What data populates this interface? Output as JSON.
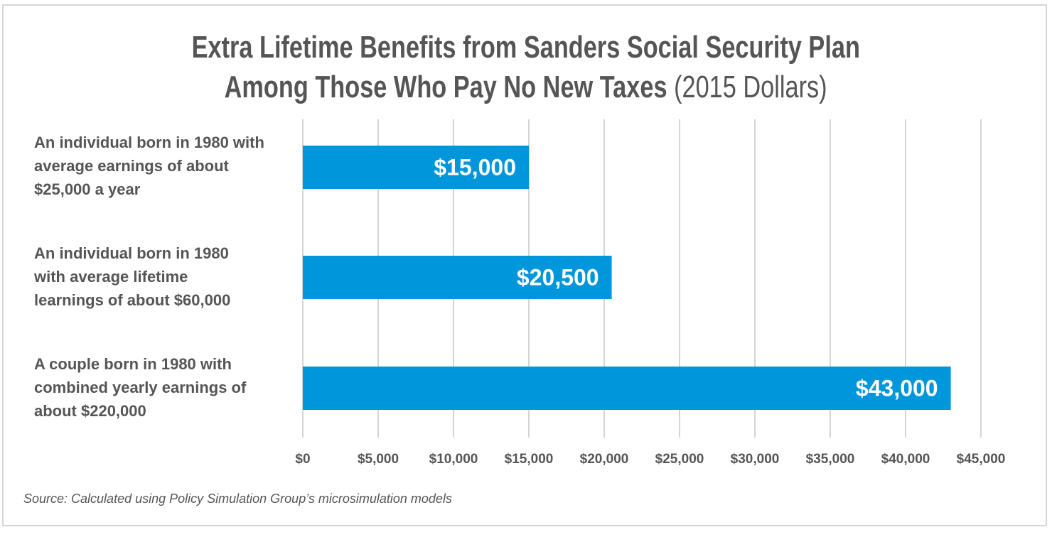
{
  "chart_data": {
    "type": "bar",
    "orientation": "horizontal",
    "title_line1": "Extra Lifetime Benefits from Sanders Social Security Plan",
    "title_line2": "Among Those Who Pay No New Taxes",
    "title_unit": "(2015 Dollars)",
    "categories": [
      "An individual born in 1980 with average earnings of about $25,000 a year",
      "An individual born in 1980 with average lifetime learnings of about $60,000",
      "A couple born in 1980 with combined yearly earnings of about $220,000"
    ],
    "values": [
      15000,
      20500,
      43000
    ],
    "data_labels": [
      "$15,000",
      "$20,500",
      "$43,000"
    ],
    "xlim": [
      0,
      45000
    ],
    "x_ticks": [
      0,
      5000,
      10000,
      15000,
      20000,
      25000,
      30000,
      35000,
      40000,
      45000
    ],
    "x_tick_labels": [
      "$0",
      "$5,000",
      "$10,000",
      "$15,000",
      "$20,000",
      "$25,000",
      "$30,000",
      "$35,000",
      "$40,000",
      "$45,000"
    ],
    "grid": true,
    "legend": "none",
    "bar_color": "#0096db",
    "source": "Source: Calculated using Policy Simulation Group’s microsimulation models"
  }
}
